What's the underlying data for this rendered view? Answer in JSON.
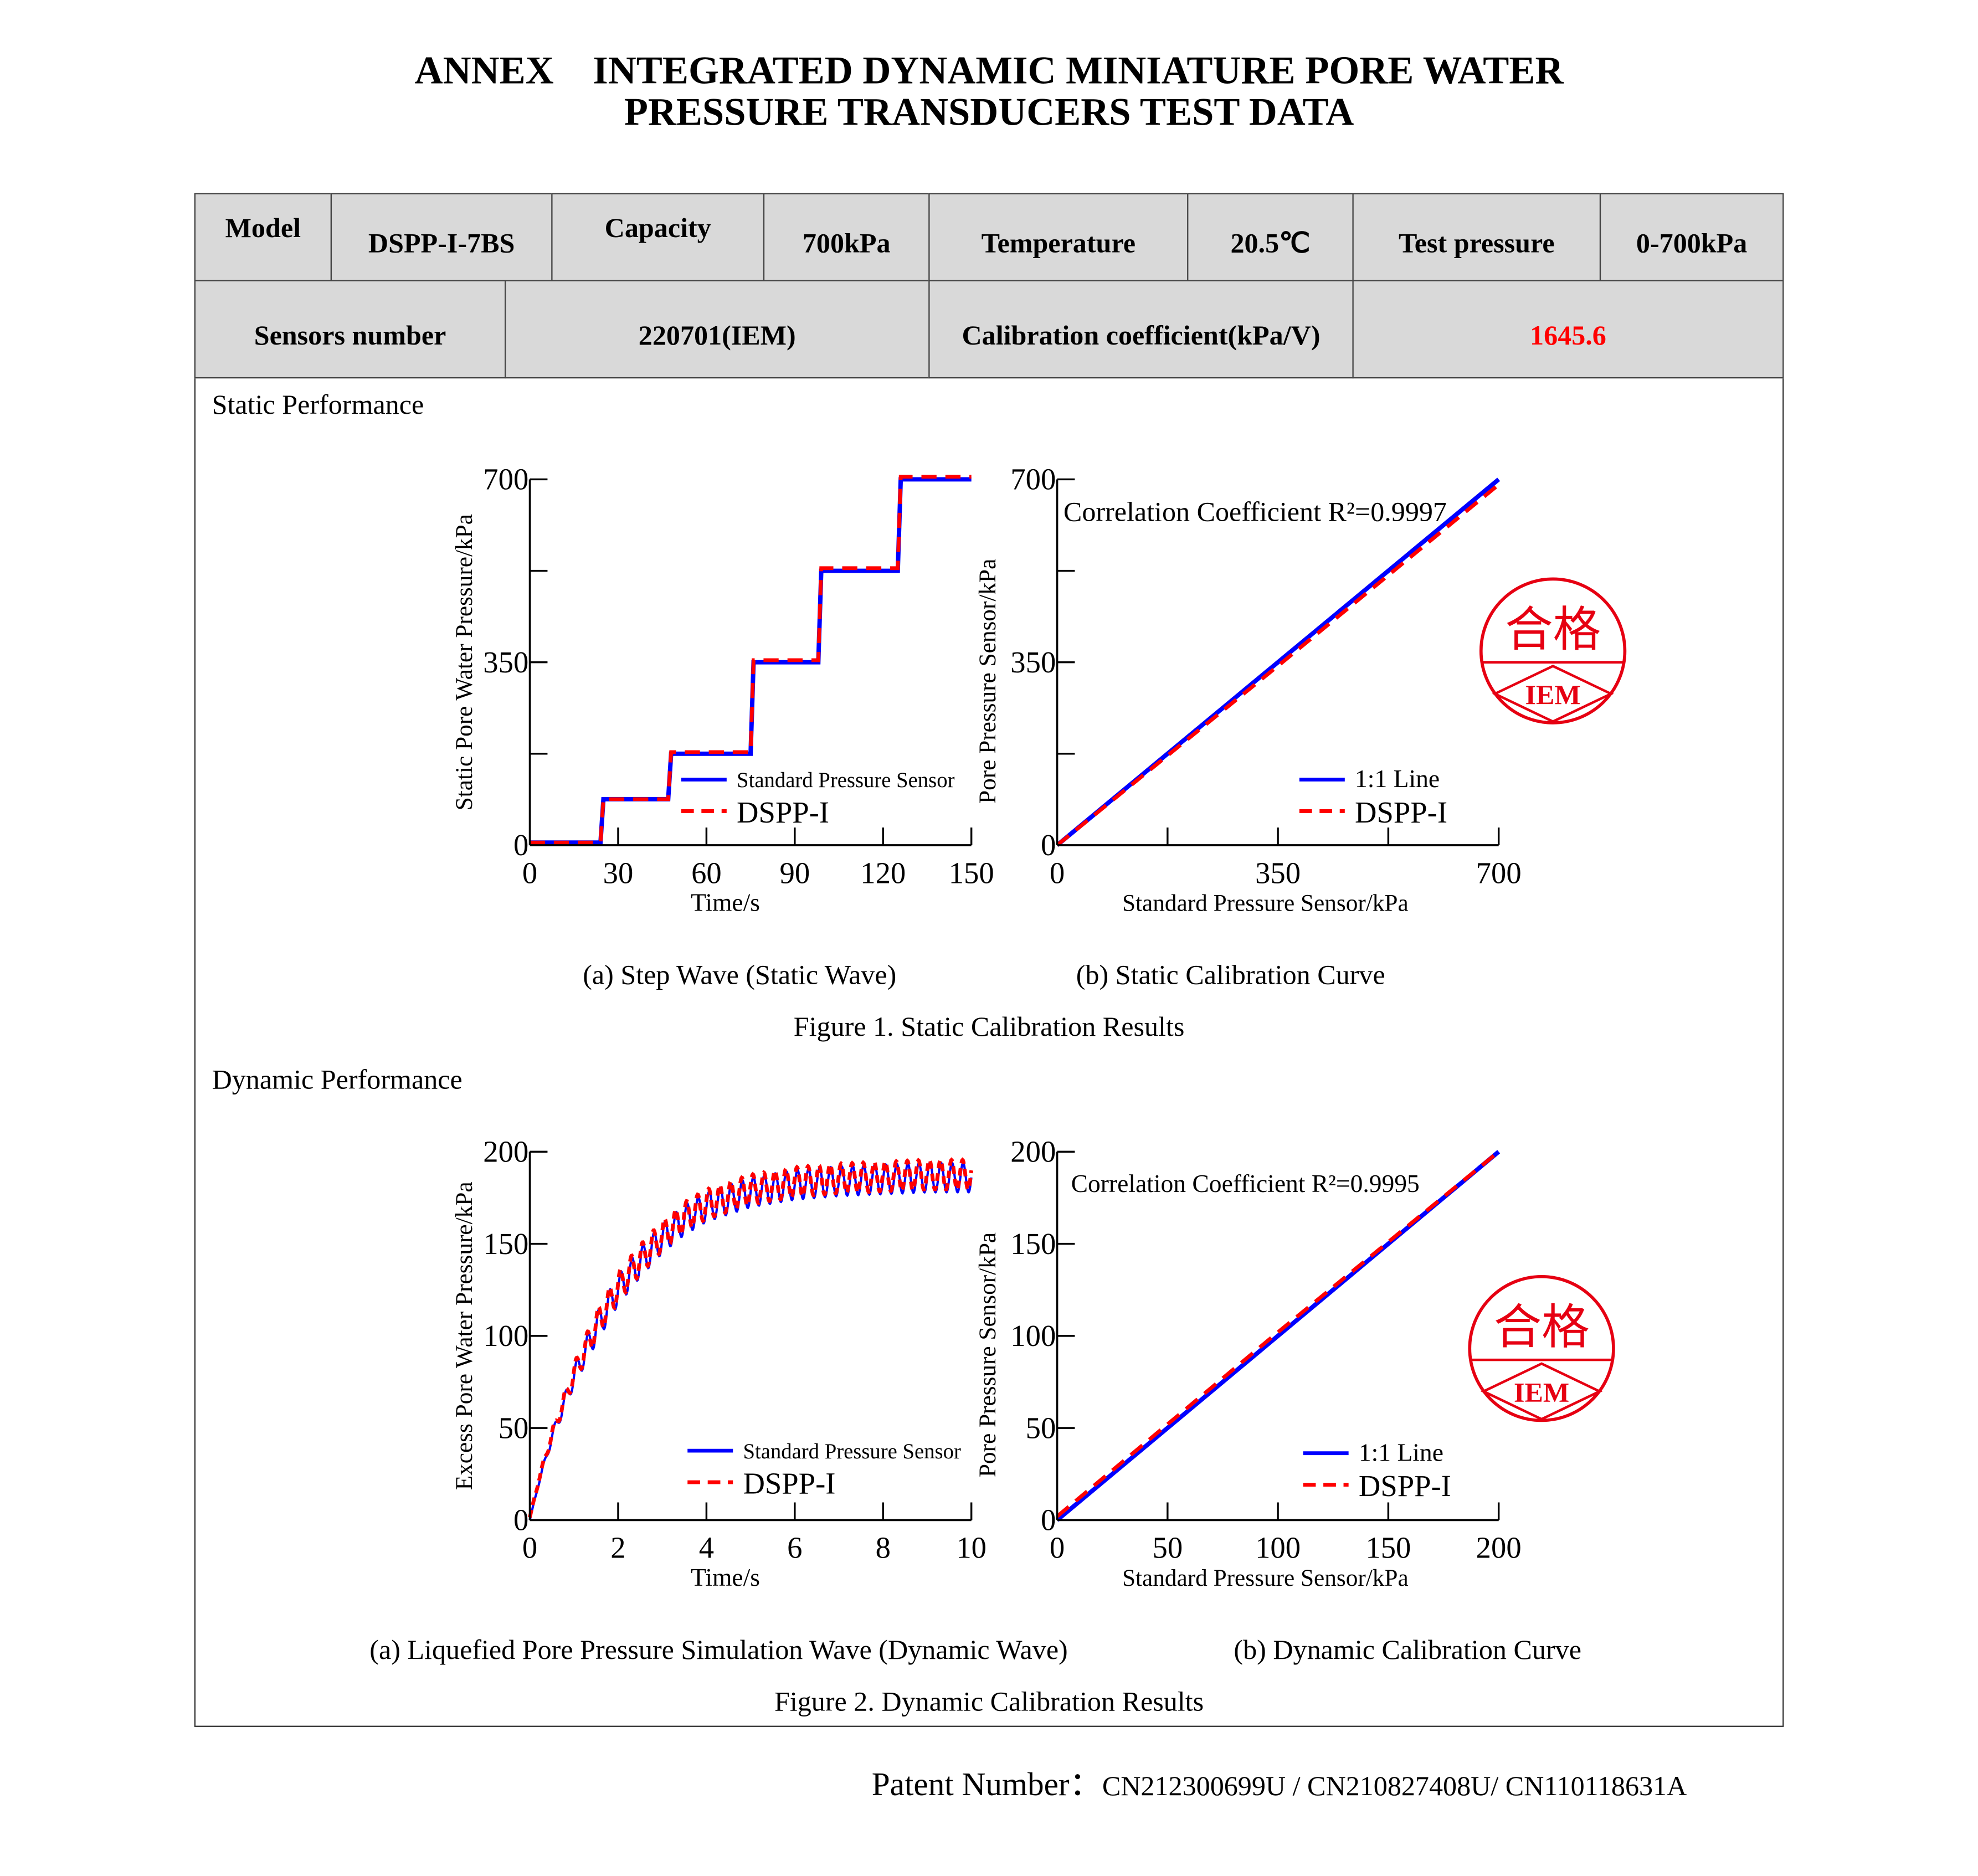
{
  "title": {
    "line1": "ANNEX　INTEGRATED DYNAMIC MINIATURE PORE WATER",
    "line2": "PRESSURE TRANSDUCERS TEST DATA"
  },
  "table": {
    "row1": [
      {
        "label": "Model"
      },
      {
        "value": "DSPP-I-7BS"
      },
      {
        "label": "Capacity"
      },
      {
        "value": "700kPa"
      },
      {
        "label": "Temperature"
      },
      {
        "value": "20.5℃"
      },
      {
        "label": "Test pressure"
      },
      {
        "value": "0-700kPa"
      }
    ],
    "row2": [
      {
        "label": "Sensors number"
      },
      {
        "value": "220701(IEM)"
      },
      {
        "label": "Calibration coefficient(kPa/V)"
      },
      {
        "value": "1645.6"
      }
    ],
    "highlight_color": "#ff0000"
  },
  "sections": {
    "static": "Static Performance",
    "dynamic": "Dynamic Performance"
  },
  "figure1": {
    "caption_a": "(a) Step Wave (Static Wave)",
    "caption_b": "(b) Static Calibration Curve",
    "title": "Figure 1. Static Calibration Results"
  },
  "figure2": {
    "caption_a": "(a) Liquefied Pore Pressure Simulation Wave (Dynamic Wave)",
    "caption_b": "(b) Dynamic Calibration Curve",
    "title": "Figure 2. Dynamic Calibration Results"
  },
  "stamp": {
    "top": "合格",
    "bottom": "IEM",
    "color": "#e60012"
  },
  "patent": {
    "label": "Patent Number：",
    "value": "CN212300699U / CN210827408U/ CN110118631A"
  },
  "chart_data": [
    {
      "type": "line",
      "xlabel": "Time/s",
      "ylabel": "Static Pore Water Pressure/kPa",
      "xlim": [
        0,
        150
      ],
      "ylim": [
        0,
        700
      ],
      "xticks": [
        0,
        30,
        60,
        90,
        120,
        150
      ],
      "yticks": [
        0,
        175,
        350,
        525,
        700
      ],
      "yticklabels": [
        "0",
        "",
        "350",
        "",
        "700"
      ],
      "series": [
        {
          "name": "Standard Pressure Sensor",
          "color": "#0000ff",
          "style": "solid",
          "x": [
            0,
            24,
            25,
            47,
            48,
            75,
            76,
            98,
            99,
            125,
            126,
            150
          ],
          "y": [
            5,
            5,
            88,
            88,
            175,
            175,
            350,
            350,
            525,
            525,
            700,
            700
          ]
        },
        {
          "name": "DSPP-I",
          "color": "#ff0000",
          "style": "dashed",
          "x": [
            0,
            24,
            25,
            47,
            48,
            75,
            76,
            98,
            99,
            125,
            126,
            150
          ],
          "y": [
            5,
            5,
            88,
            88,
            178,
            178,
            354,
            354,
            530,
            530,
            705,
            705
          ]
        }
      ]
    },
    {
      "type": "line",
      "xlabel": "Standard Pressure Sensor/kPa",
      "ylabel": "Pore Pressure Sensor/kPa",
      "xlim": [
        0,
        700
      ],
      "ylim": [
        0,
        700
      ],
      "xticks": [
        0,
        175,
        350,
        525,
        700
      ],
      "xticklabels": [
        "0",
        "",
        "350",
        "",
        "700"
      ],
      "yticks": [
        0,
        175,
        350,
        525,
        700
      ],
      "yticklabels": [
        "0",
        "",
        "350",
        "",
        "700"
      ],
      "annotation": "Correlation Coefficient R²=0.9997",
      "series": [
        {
          "name": "1:1 Line",
          "color": "#0000ff",
          "style": "solid",
          "x": [
            0,
            700
          ],
          "y": [
            0,
            700
          ]
        },
        {
          "name": "DSPP-I",
          "color": "#ff0000",
          "style": "dashed",
          "x": [
            0,
            350,
            700
          ],
          "y": [
            0,
            343,
            690
          ]
        }
      ]
    },
    {
      "type": "line",
      "xlabel": "Time/s",
      "ylabel": "Excess Pore Water Pressure/kPa",
      "xlim": [
        0,
        10
      ],
      "ylim": [
        0,
        200
      ],
      "xticks": [
        0,
        2,
        4,
        6,
        8,
        10
      ],
      "yticks": [
        0,
        50,
        100,
        150,
        200
      ],
      "series": [
        {
          "name": "Standard Pressure Sensor",
          "color": "#0000ff",
          "style": "solid"
        },
        {
          "name": "DSPP-I",
          "color": "#ff0000",
          "style": "dashed"
        }
      ],
      "mean_curve": {
        "x": [
          0,
          0.2,
          0.5,
          1,
          1.5,
          2,
          2.5,
          3,
          3.5,
          4,
          5,
          6,
          7,
          8,
          9,
          10
        ],
        "y": [
          0,
          20,
          45,
          78,
          104,
          125,
          140,
          153,
          163,
          170,
          178,
          182,
          184,
          185,
          186,
          186
        ]
      },
      "oscillation_amplitude_kPa": 8,
      "oscillation_frequency_Hz": 4
    },
    {
      "type": "line",
      "xlabel": "Standard Pressure Sensor/kPa",
      "ylabel": "Pore Pressure Sensor/kPa",
      "xlim": [
        0,
        200
      ],
      "ylim": [
        0,
        200
      ],
      "xticks": [
        0,
        50,
        100,
        150,
        200
      ],
      "yticks": [
        0,
        50,
        100,
        150,
        200
      ],
      "annotation": "Correlation Coefficient R²=0.9995",
      "series": [
        {
          "name": "1:1 Line",
          "color": "#0000ff",
          "style": "solid",
          "x": [
            0,
            200
          ],
          "y": [
            0,
            200
          ]
        },
        {
          "name": "DSPP-I",
          "color": "#ff0000",
          "style": "dashed",
          "x": [
            0,
            100,
            200
          ],
          "y": [
            2,
            102,
            200
          ]
        }
      ]
    }
  ]
}
